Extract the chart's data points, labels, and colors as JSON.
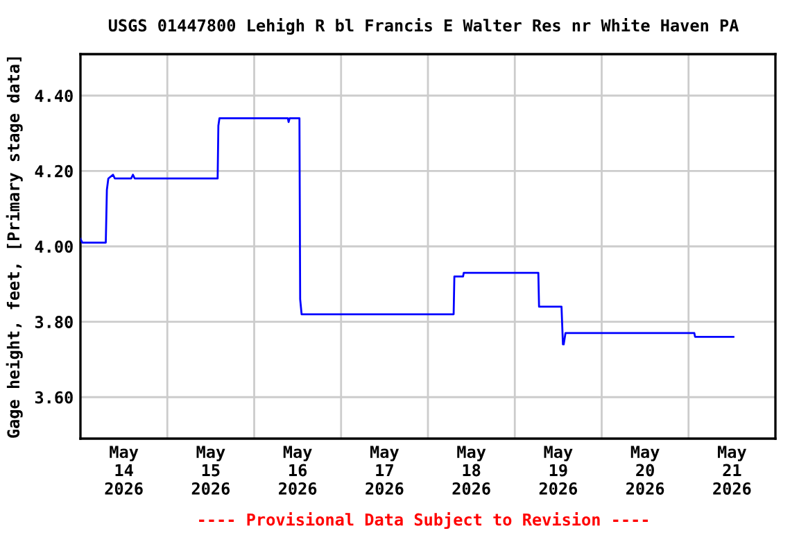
{
  "chart_data": {
    "type": "line",
    "title": "USGS 01447800 Lehigh R bl Francis E Walter Res nr White Haven PA",
    "ylabel": "Gage height, feet, [Primary stage data]",
    "annotations": [
      "---- Provisional Data Subject to Revision ----"
    ],
    "series": [
      {
        "color": "#0000ff",
        "x": [
          "2026-05-14T00:00",
          "2026-05-14T00:30",
          "2026-05-14T07:00",
          "2026-05-14T07:18",
          "2026-05-14T07:42",
          "2026-05-14T09:00",
          "2026-05-14T09:30",
          "2026-05-14T14:00",
          "2026-05-14T14:30",
          "2026-05-14T15:00",
          "2026-05-15T13:54",
          "2026-05-15T14:06",
          "2026-05-15T14:24",
          "2026-05-16T09:18",
          "2026-05-16T09:30",
          "2026-05-16T09:48",
          "2026-05-16T12:30",
          "2026-05-16T12:42",
          "2026-05-16T13:06",
          "2026-05-18T07:06",
          "2026-05-18T07:18",
          "2026-05-18T09:42",
          "2026-05-18T09:54",
          "2026-05-19T06:30",
          "2026-05-19T06:42",
          "2026-05-19T12:54",
          "2026-05-19T13:18",
          "2026-05-19T13:30",
          "2026-05-19T14:00",
          "2026-05-21T01:36",
          "2026-05-21T01:48",
          "2026-05-21T12:24"
        ],
        "values": [
          4.02,
          4.01,
          4.01,
          4.15,
          4.18,
          4.19,
          4.18,
          4.18,
          4.19,
          4.18,
          4.18,
          4.32,
          4.34,
          4.34,
          4.33,
          4.34,
          4.34,
          3.86,
          3.82,
          3.82,
          3.92,
          3.92,
          3.93,
          3.93,
          3.84,
          3.84,
          3.74,
          3.74,
          3.77,
          3.77,
          3.76,
          3.76
        ]
      }
    ],
    "xlim": [
      "2026-05-14T00:00",
      "2026-05-22T00:00"
    ],
    "xticks": [
      {
        "value": "2026-05-14T12:00",
        "label": "May\n14\n2026"
      },
      {
        "value": "2026-05-15T00:00",
        "label": null
      },
      {
        "value": "2026-05-15T12:00",
        "label": "May\n15\n2026"
      },
      {
        "value": "2026-05-16T00:00",
        "label": null
      },
      {
        "value": "2026-05-16T12:00",
        "label": "May\n16\n2026"
      },
      {
        "value": "2026-05-17T00:00",
        "label": null
      },
      {
        "value": "2026-05-17T12:00",
        "label": "May\n17\n2026"
      },
      {
        "value": "2026-05-18T00:00",
        "label": null
      },
      {
        "value": "2026-05-18T12:00",
        "label": "May\n18\n2026"
      },
      {
        "value": "2026-05-19T00:00",
        "label": null
      },
      {
        "value": "2026-05-19T12:00",
        "label": "May\n19\n2026"
      },
      {
        "value": "2026-05-20T00:00",
        "label": null
      },
      {
        "value": "2026-05-20T12:00",
        "label": "May\n20\n2026"
      },
      {
        "value": "2026-05-21T00:00",
        "label": null
      },
      {
        "value": "2026-05-21T12:00",
        "label": "May\n21\n2026"
      }
    ],
    "ylim": [
      3.49,
      4.51
    ],
    "yticks": [
      {
        "value": 3.6,
        "label": "3.60"
      },
      {
        "value": 3.8,
        "label": "3.80"
      },
      {
        "value": 4.0,
        "label": "4.00"
      },
      {
        "value": 4.2,
        "label": "4.20"
      },
      {
        "value": 4.4,
        "label": "4.40"
      }
    ],
    "grid": true,
    "marker": "none",
    "line_style": "solid"
  }
}
